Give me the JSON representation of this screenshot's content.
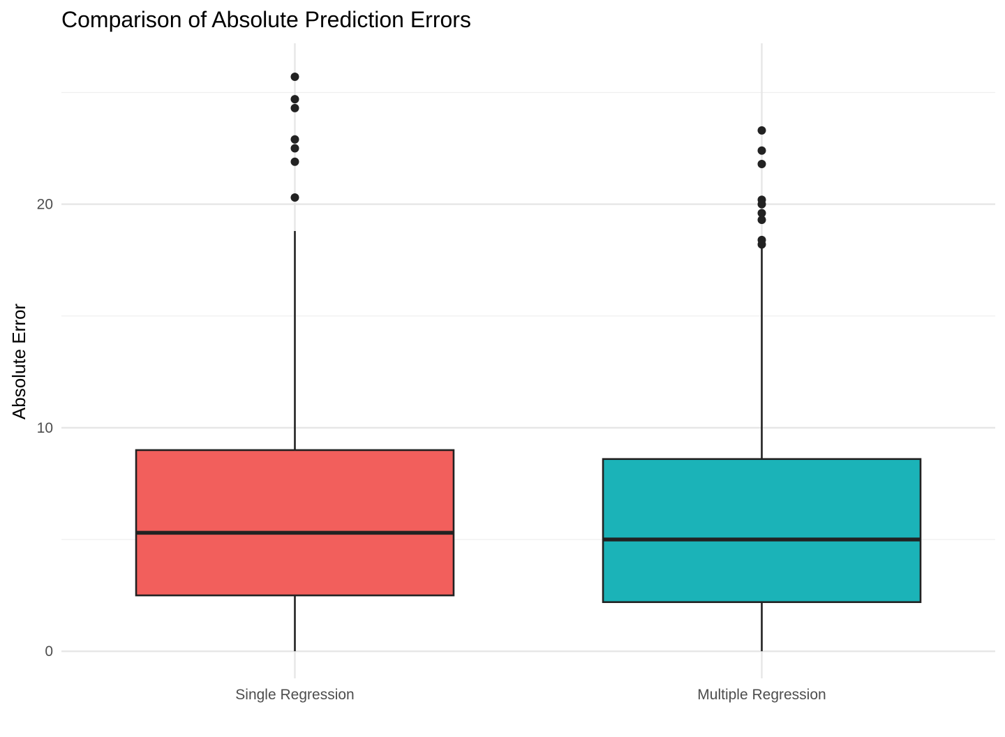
{
  "chart_data": {
    "type": "boxplot",
    "title": "Comparison of Absolute Prediction Errors",
    "xlabel": "",
    "ylabel": "Absolute Error",
    "categories": [
      "Single Regression",
      "Multiple Regression"
    ],
    "ylim": [
      -0.9,
      27.2
    ],
    "y_ticks": [
      0,
      10,
      20
    ],
    "y_tick_labels": [
      "0",
      "10",
      "20"
    ],
    "grid": true,
    "legend": "none",
    "series": [
      {
        "category": "Single Regression",
        "color": "#F8766D",
        "fill_display": "#f25f5c",
        "min": 0.0,
        "q1": 2.5,
        "median": 5.3,
        "q3": 9.0,
        "max": 18.8,
        "outliers": [
          20.3,
          21.9,
          22.5,
          22.9,
          24.3,
          24.7,
          25.7
        ]
      },
      {
        "category": "Multiple Regression",
        "color": "#00BFC4",
        "fill_display": "#1bb3b8",
        "min": 0.0,
        "q1": 2.2,
        "median": 5.0,
        "q3": 8.6,
        "max": 18.2,
        "outliers": [
          18.2,
          18.4,
          19.3,
          19.6,
          20.0,
          20.2,
          21.8,
          22.4,
          23.3
        ]
      }
    ]
  }
}
